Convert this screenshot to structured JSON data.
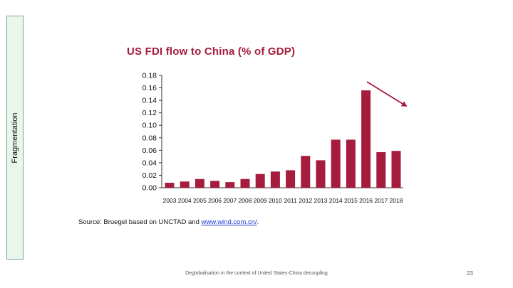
{
  "sidebar": {
    "label": "Fragmentation"
  },
  "chart_data": {
    "type": "bar",
    "title": "US FDI flow to China (% of GDP)",
    "categories": [
      "2003",
      "2004",
      "2005",
      "2006",
      "2007",
      "2008",
      "2009",
      "2010",
      "2011",
      "2012",
      "2013",
      "2014",
      "2015",
      "2016",
      "2017",
      "2018"
    ],
    "values": [
      0.008,
      0.01,
      0.014,
      0.011,
      0.009,
      0.014,
      0.022,
      0.026,
      0.028,
      0.051,
      0.044,
      0.077,
      0.077,
      0.156,
      0.057,
      0.059
    ],
    "yticks": [
      "0.00",
      "0.02",
      "0.04",
      "0.06",
      "0.08",
      "0.10",
      "0.12",
      "0.14",
      "0.16",
      "0.18"
    ],
    "ylim": [
      0,
      0.18
    ],
    "xlabel": "",
    "ylabel": "",
    "grid": false,
    "bar_color": "#a61c3c",
    "annotation": "downward-trend-arrow"
  },
  "source": {
    "prefix": "Source: Bruegel based on UNCTAD and ",
    "link_text": "www.wind.com.cn/",
    "suffix": "."
  },
  "footer": {
    "caption": "Deglobalisation in the context of United States-China decoupling",
    "page_number": "23"
  }
}
